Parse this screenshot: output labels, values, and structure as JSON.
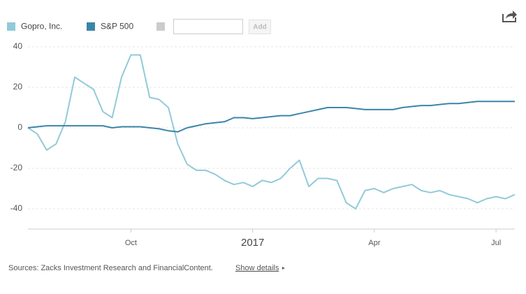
{
  "chart_data": {
    "type": "line",
    "categories": [
      null,
      null,
      null,
      null,
      null,
      null,
      null,
      null,
      null,
      null,
      null,
      "Oct",
      null,
      null,
      null,
      null,
      null,
      null,
      null,
      null,
      null,
      null,
      null,
      null,
      "2017",
      null,
      null,
      null,
      null,
      null,
      null,
      null,
      null,
      null,
      null,
      null,
      null,
      "Apr",
      null,
      null,
      null,
      null,
      null,
      null,
      null,
      null,
      null,
      null,
      null,
      null,
      "Jul",
      null,
      null
    ],
    "series": [
      {
        "name": "Gopro, Inc.",
        "color": "#92cad9",
        "values": [
          0,
          -3,
          -11,
          -8,
          3,
          25,
          22,
          19,
          8,
          5,
          25,
          36,
          36,
          15,
          14,
          10,
          -8,
          -18,
          -21,
          -21,
          -23,
          -26,
          -28,
          -27,
          -29,
          -26,
          -27,
          -25,
          -20,
          -16,
          -29,
          -25,
          -25,
          -26,
          -37,
          -40,
          -31,
          -30,
          -32,
          -30,
          -29,
          -28,
          -31,
          -32,
          -31,
          -33,
          -34,
          -35,
          -37,
          -35,
          -34,
          -35,
          -33
        ]
      },
      {
        "name": "S&P 500",
        "color": "#3a86a8",
        "values": [
          0,
          0.5,
          1,
          1,
          1,
          1,
          1,
          1,
          1,
          0,
          0.5,
          0.5,
          0.5,
          0,
          -0.5,
          -1.5,
          -2,
          0,
          1,
          2,
          2.5,
          3,
          5,
          5,
          4.5,
          5,
          5.5,
          6,
          6,
          7,
          8,
          9,
          10,
          10,
          10,
          9.5,
          9,
          9,
          9,
          9,
          10,
          10.5,
          11,
          11,
          11.5,
          12,
          12,
          12.5,
          13,
          13,
          13,
          13,
          13
        ]
      }
    ],
    "ylim": [
      -50,
      44
    ],
    "yticks": [
      40,
      20,
      0,
      -20,
      -40
    ],
    "grid": true,
    "add_label": "Add",
    "source": "Sources: Zacks Investment Research and FinancialContent.",
    "details_link": "Show details"
  }
}
